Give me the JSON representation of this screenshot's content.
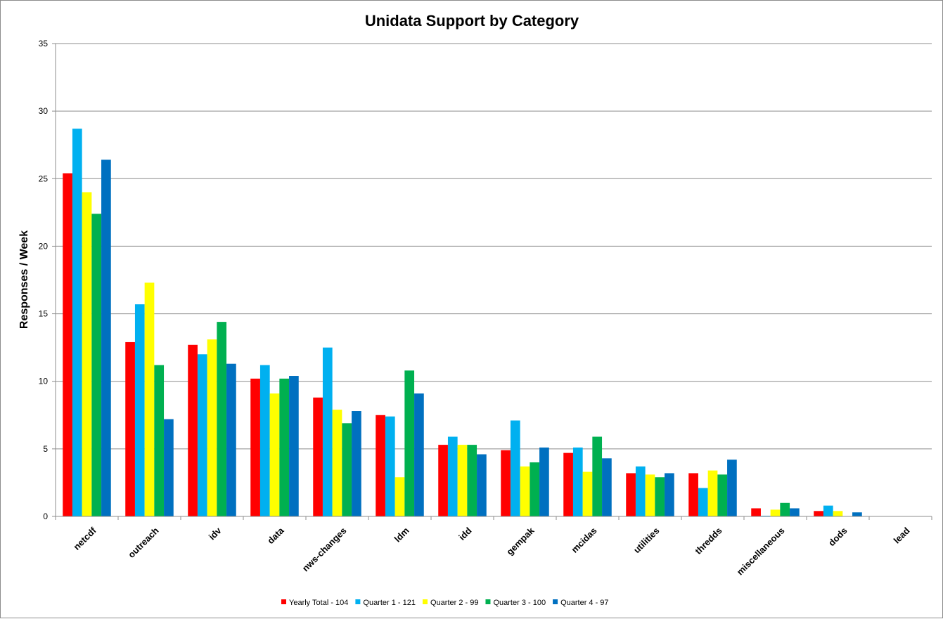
{
  "chart_data": {
    "type": "bar",
    "title": "Unidata Support by Category",
    "xlabel": "",
    "ylabel": "Responses / Week",
    "ylim": [
      0,
      35
    ],
    "yticks": [
      "0",
      "5",
      "10",
      "15",
      "20",
      "25",
      "30",
      "35"
    ],
    "grid": true,
    "legend_position": "bottom",
    "categories": [
      "netcdf",
      "outreach",
      "idv",
      "data",
      "nws-changes",
      "ldm",
      "idd",
      "gempak",
      "mcidas",
      "utilities",
      "thredds",
      "miscellaneous",
      "dods",
      "lead"
    ],
    "series": [
      {
        "name": "Yearly Total  - 104",
        "color": "#ff0000",
        "values": [
          25.4,
          12.9,
          12.7,
          10.2,
          8.8,
          7.5,
          5.3,
          4.9,
          4.7,
          3.2,
          3.2,
          0.6,
          0.4,
          0
        ]
      },
      {
        "name": "Quarter 1 - 121",
        "color": "#00b0f0",
        "values": [
          28.7,
          15.7,
          12.0,
          11.2,
          12.5,
          7.4,
          5.9,
          7.1,
          5.1,
          3.7,
          2.1,
          0.05,
          0.8,
          0
        ]
      },
      {
        "name": "Quarter 2 - 99",
        "color": "#ffff00",
        "values": [
          24.0,
          17.3,
          13.1,
          9.1,
          7.9,
          2.9,
          5.3,
          3.7,
          3.3,
          3.1,
          3.4,
          0.5,
          0.4,
          0
        ]
      },
      {
        "name": "Quarter 3 - 100",
        "color": "#00b050",
        "values": [
          22.4,
          11.2,
          14.4,
          10.2,
          6.9,
          10.8,
          5.3,
          4.0,
          5.9,
          2.9,
          3.1,
          1.0,
          0,
          0
        ]
      },
      {
        "name": "Quarter 4 - 97",
        "color": "#0070c0",
        "values": [
          26.4,
          7.2,
          11.3,
          10.4,
          7.8,
          9.1,
          4.6,
          5.1,
          4.3,
          3.2,
          4.2,
          0.6,
          0.3,
          0
        ]
      }
    ]
  }
}
